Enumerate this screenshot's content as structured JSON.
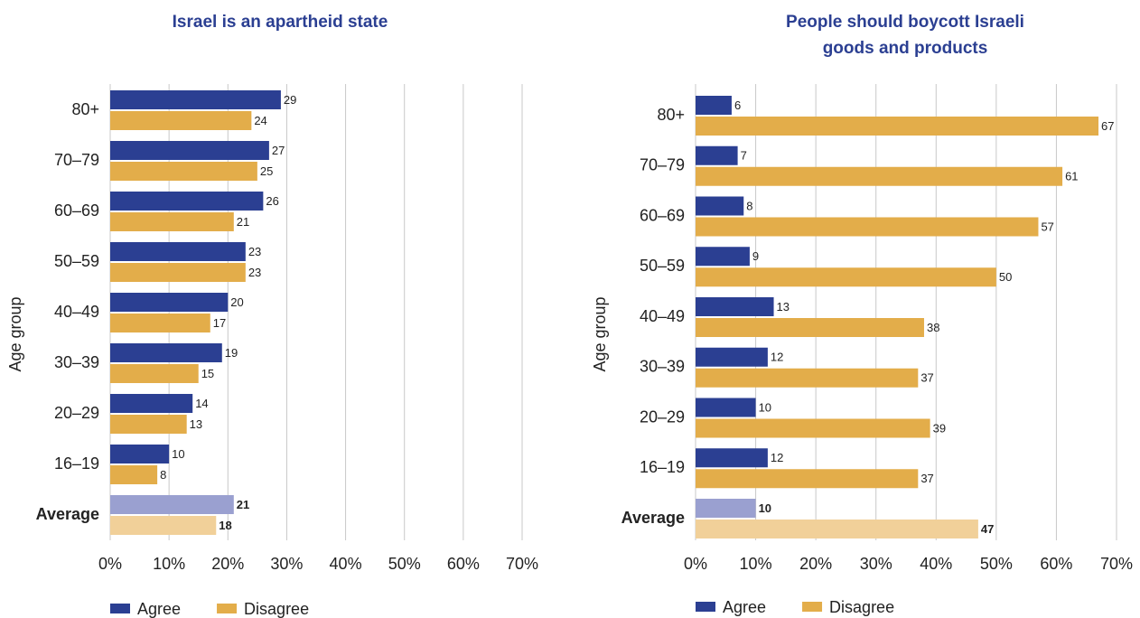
{
  "chart_data": [
    {
      "type": "hbar",
      "title": [
        "Israel is an apartheid state"
      ],
      "y_label": "Age group",
      "categories": [
        "80+",
        "70–79",
        "60–69",
        "50–59",
        "40–49",
        "30–39",
        "20–29",
        "16–19",
        "Average"
      ],
      "series": [
        {
          "name": "Agree",
          "color": "#2b3f92",
          "highlight_color": "#9aa0d0",
          "values": [
            29,
            27,
            26,
            23,
            20,
            19,
            14,
            10,
            21
          ]
        },
        {
          "name": "Disagree",
          "color": "#e3ad4a",
          "highlight_color": "#f1d099",
          "values": [
            24,
            25,
            21,
            23,
            17,
            15,
            13,
            8,
            18
          ]
        }
      ],
      "highlight_last": true,
      "xlim": [
        0,
        70
      ],
      "xticks": [
        {
          "value": 0,
          "label": "0%"
        },
        {
          "value": 10,
          "label": "10%"
        },
        {
          "value": 20,
          "label": "20%"
        },
        {
          "value": 30,
          "label": "30%"
        },
        {
          "value": 40,
          "label": "40%"
        },
        {
          "value": 50,
          "label": "50%"
        },
        {
          "value": 60,
          "label": "60%"
        },
        {
          "value": 70,
          "label": "70%"
        }
      ],
      "grid": true,
      "legend": "bottom"
    },
    {
      "type": "hbar",
      "title": [
        "People should boycott Israeli",
        "goods and products"
      ],
      "y_label": "Age group",
      "categories": [
        "80+",
        "70–79",
        "60–69",
        "50–59",
        "40–49",
        "30–39",
        "20–29",
        "16–19",
        "Average"
      ],
      "series": [
        {
          "name": "Agree",
          "color": "#2b3f92",
          "highlight_color": "#9aa0d0",
          "values": [
            6,
            7,
            8,
            9,
            13,
            12,
            10,
            12,
            10
          ]
        },
        {
          "name": "Disagree",
          "color": "#e3ad4a",
          "highlight_color": "#f1d099",
          "values": [
            67,
            61,
            57,
            50,
            38,
            37,
            39,
            37,
            47
          ]
        }
      ],
      "highlight_last": true,
      "xlim": [
        0,
        70
      ],
      "xticks": [
        {
          "value": 0,
          "label": "0%"
        },
        {
          "value": 10,
          "label": "10%"
        },
        {
          "value": 20,
          "label": "20%"
        },
        {
          "value": 30,
          "label": "30%"
        },
        {
          "value": 40,
          "label": "40%"
        },
        {
          "value": 50,
          "label": "50%"
        },
        {
          "value": 60,
          "label": "60%"
        },
        {
          "value": 70,
          "label": "70%"
        }
      ],
      "grid": true,
      "legend": "bottom"
    }
  ]
}
